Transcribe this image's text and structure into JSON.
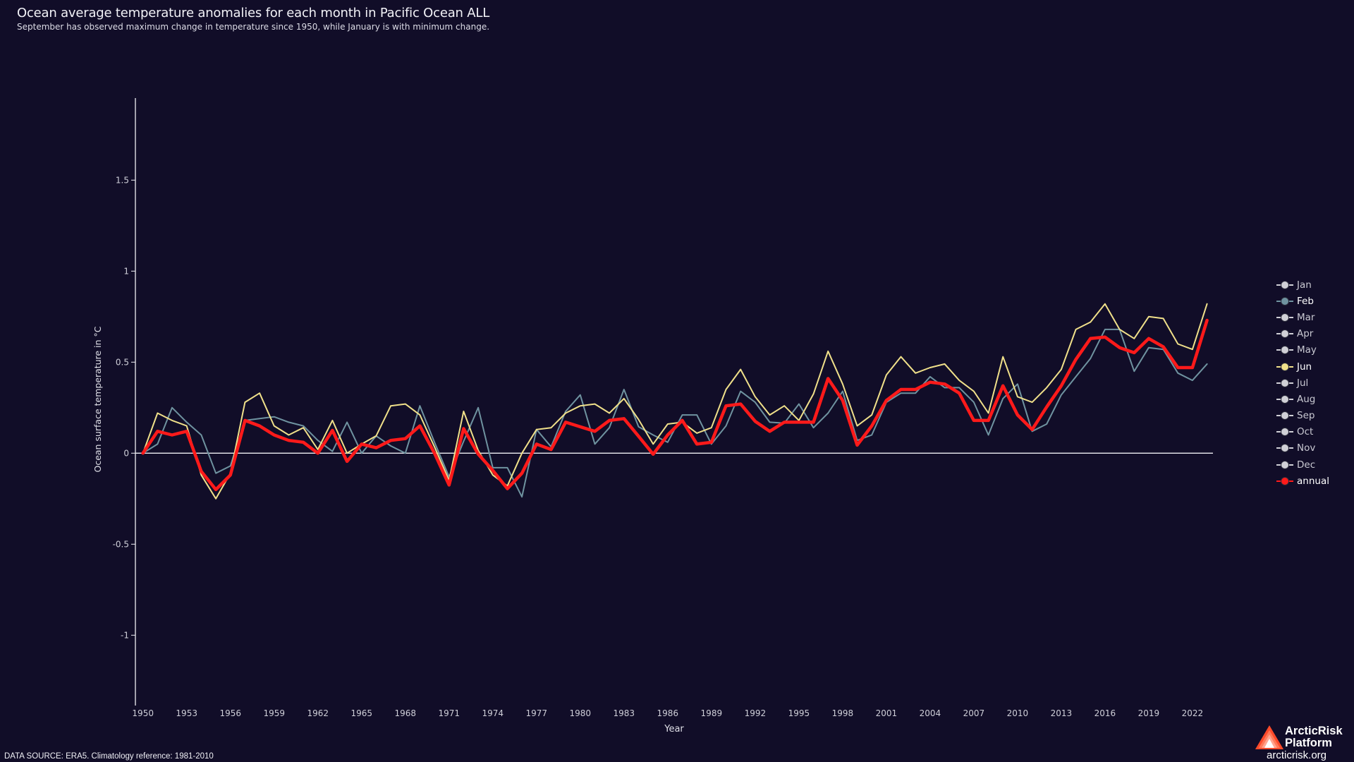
{
  "header": {
    "title": "Ocean average temperature anomalies for each month in Pacific Ocean ALL",
    "subtitle": "September has observed maximum change in temperature since 1950, while January is with minimum change."
  },
  "footer": {
    "source": "DATA SOURCE: ERA5. Climatology reference: 1981-2010",
    "brand_line1": "ArcticRisk",
    "brand_line2": "Platform",
    "brand_url": "arcticrisk.org"
  },
  "legend": {
    "items": [
      {
        "label": "Jan",
        "color": "#d0d0d6",
        "active": false
      },
      {
        "label": "Feb",
        "color": "#6f93a0",
        "active": true
      },
      {
        "label": "Mar",
        "color": "#d0d0d6",
        "active": false
      },
      {
        "label": "Apr",
        "color": "#d0d0d6",
        "active": false
      },
      {
        "label": "May",
        "color": "#d0d0d6",
        "active": false
      },
      {
        "label": "Jun",
        "color": "#f0e08a",
        "active": true
      },
      {
        "label": "Jul",
        "color": "#d0d0d6",
        "active": false
      },
      {
        "label": "Aug",
        "color": "#d0d0d6",
        "active": false
      },
      {
        "label": "Sep",
        "color": "#d0d0d6",
        "active": false
      },
      {
        "label": "Oct",
        "color": "#d0d0d6",
        "active": false
      },
      {
        "label": "Nov",
        "color": "#d0d0d6",
        "active": false
      },
      {
        "label": "Dec",
        "color": "#d0d0d6",
        "active": false
      },
      {
        "label": "annual",
        "color": "#ff1a1a",
        "active": true
      }
    ]
  },
  "chart_data": {
    "type": "line",
    "title": "Ocean average temperature anomalies for each month in Pacific Ocean ALL",
    "subtitle": "September has observed maximum change in temperature since 1950, while January is with minimum change.",
    "xlabel": "Year",
    "ylabel": "Ocean surface temperature in °C",
    "xlim": [
      1950,
      2023
    ],
    "ylim": [
      -1.4,
      1.95
    ],
    "x_ticks": [
      1950,
      1953,
      1956,
      1959,
      1962,
      1965,
      1968,
      1971,
      1974,
      1977,
      1980,
      1983,
      1986,
      1989,
      1992,
      1995,
      1998,
      2001,
      2004,
      2007,
      2010,
      2013,
      2016,
      2019,
      2022
    ],
    "y_ticks": [
      -1,
      -0.5,
      0,
      0.5,
      1,
      1.5
    ],
    "y_tick_labels": [
      "-1",
      "-0.5",
      "0",
      "0.5",
      "1",
      "1.5"
    ],
    "zero_line": true,
    "grid": false,
    "legend_position": "right",
    "x": [
      1950,
      1951,
      1952,
      1953,
      1954,
      1955,
      1956,
      1957,
      1958,
      1959,
      1960,
      1961,
      1962,
      1963,
      1964,
      1965,
      1966,
      1967,
      1968,
      1969,
      1970,
      1971,
      1972,
      1973,
      1974,
      1975,
      1976,
      1977,
      1978,
      1979,
      1980,
      1981,
      1982,
      1983,
      1984,
      1985,
      1986,
      1987,
      1988,
      1989,
      1990,
      1991,
      1992,
      1993,
      1994,
      1995,
      1996,
      1997,
      1998,
      1999,
      2000,
      2001,
      2002,
      2003,
      2004,
      2005,
      2006,
      2007,
      2008,
      2009,
      2010,
      2011,
      2012,
      2013,
      2014,
      2015,
      2016,
      2017,
      2018,
      2019,
      2020,
      2021,
      2022,
      2023
    ],
    "series": [
      {
        "name": "Feb",
        "color": "#6f93a0",
        "width": 2,
        "values": [
          0,
          0.05,
          0.25,
          0.17,
          0.1,
          -0.11,
          -0.07,
          0.18,
          0.19,
          0.2,
          0.17,
          0.15,
          0.07,
          0.01,
          0.17,
          0.0,
          0.095,
          0.04,
          0.0,
          0.26,
          0.06,
          -0.13,
          0.065,
          0.25,
          -0.08,
          -0.08,
          -0.24,
          0.13,
          0.035,
          0.23,
          0.32,
          0.05,
          0.14,
          0.35,
          0.145,
          0.1,
          0.06,
          0.21,
          0.21,
          0.05,
          0.15,
          0.34,
          0.28,
          0.17,
          0.165,
          0.27,
          0.14,
          0.22,
          0.34,
          0.07,
          0.1,
          0.28,
          0.33,
          0.33,
          0.42,
          0.36,
          0.36,
          0.28,
          0.1,
          0.3,
          0.38,
          0.12,
          0.16,
          0.32,
          0.42,
          0.52,
          0.68,
          0.68,
          0.45,
          0.58,
          0.57,
          0.44,
          0.4,
          0.49
        ]
      },
      {
        "name": "Jun",
        "color": "#f0e08a",
        "width": 2,
        "values": [
          0,
          0.22,
          0.18,
          0.15,
          -0.12,
          -0.25,
          -0.11,
          0.28,
          0.33,
          0.15,
          0.1,
          0.14,
          0.02,
          0.18,
          0.0,
          0.05,
          0.095,
          0.26,
          0.27,
          0.21,
          0.035,
          -0.15,
          0.23,
          0.015,
          -0.12,
          -0.18,
          0.0,
          0.13,
          0.14,
          0.22,
          0.26,
          0.27,
          0.22,
          0.3,
          0.185,
          0.05,
          0.16,
          0.17,
          0.11,
          0.14,
          0.35,
          0.46,
          0.31,
          0.21,
          0.26,
          0.18,
          0.325,
          0.56,
          0.38,
          0.15,
          0.21,
          0.43,
          0.53,
          0.44,
          0.47,
          0.49,
          0.4,
          0.34,
          0.22,
          0.53,
          0.31,
          0.28,
          0.36,
          0.46,
          0.68,
          0.72,
          0.82,
          0.68,
          0.63,
          0.75,
          0.74,
          0.6,
          0.57,
          0.82
        ]
      },
      {
        "name": "annual",
        "color": "#ff1a1a",
        "width": 4.5,
        "values": [
          0,
          0.12,
          0.1,
          0.12,
          -0.1,
          -0.2,
          -0.12,
          0.18,
          0.15,
          0.1,
          0.07,
          0.06,
          0.0,
          0.125,
          -0.045,
          0.05,
          0.03,
          0.07,
          0.08,
          0.15,
          0.0,
          -0.175,
          0.135,
          -0.005,
          -0.095,
          -0.195,
          -0.11,
          0.05,
          0.02,
          0.17,
          0.145,
          0.12,
          0.18,
          0.19,
          0.093,
          -0.006,
          0.1,
          0.18,
          0.05,
          0.06,
          0.26,
          0.27,
          0.175,
          0.12,
          0.17,
          0.17,
          0.17,
          0.41,
          0.29,
          0.044,
          0.15,
          0.29,
          0.35,
          0.35,
          0.39,
          0.38,
          0.33,
          0.18,
          0.18,
          0.37,
          0.21,
          0.13,
          0.254,
          0.37,
          0.515,
          0.63,
          0.638,
          0.58,
          0.552,
          0.63,
          0.584,
          0.47,
          0.47,
          0.73
        ]
      }
    ]
  }
}
